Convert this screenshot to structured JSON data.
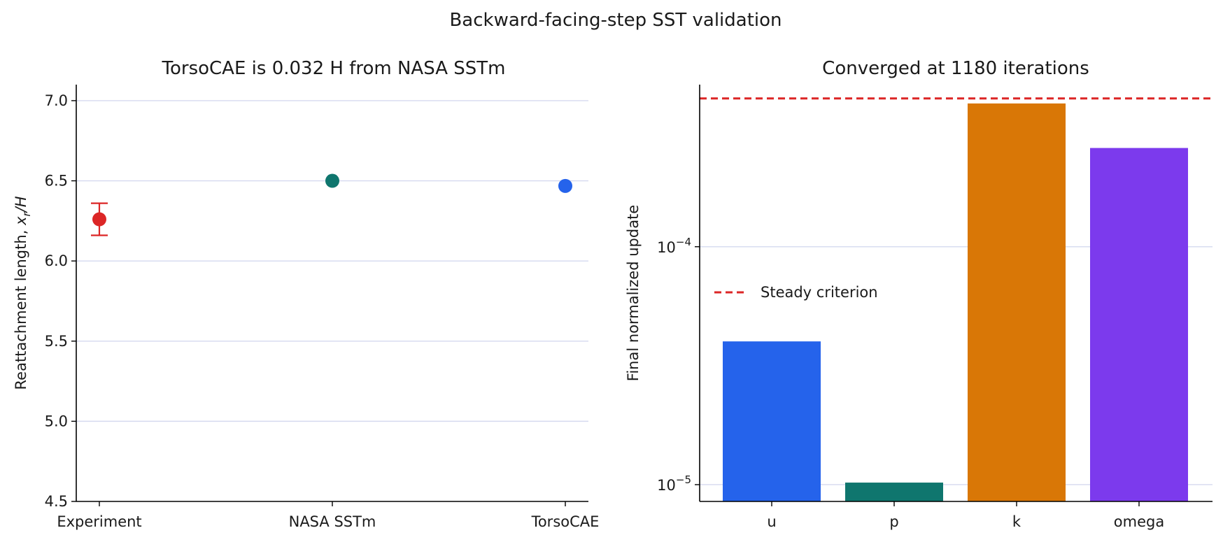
{
  "figure_title": "Backward-facing-step SST validation",
  "chart_data": [
    {
      "type": "scatter",
      "title": "TorsoCAE is 0.032 H from NASA SSTm",
      "ylabel_prefix": "Reattachment length, ",
      "ylabel_math": "x",
      "ylabel_sub": "r",
      "ylabel_suffix": "/H",
      "categories": [
        "Experiment",
        "NASA SSTm",
        "TorsoCAE"
      ],
      "values": [
        6.26,
        6.5,
        6.468
      ],
      "errors": [
        0.1,
        null,
        null
      ],
      "colors": [
        "#dc2626",
        "#0f766e",
        "#2563eb"
      ],
      "ylim": [
        4.5,
        7.1
      ],
      "yticks": [
        "4.5",
        "5.0",
        "5.5",
        "6.0",
        "6.5",
        "7.0"
      ],
      "grid": "y"
    },
    {
      "type": "bar",
      "title": "Converged at 1180 iterations",
      "ylabel": "Final normalized update",
      "yscale": "log",
      "categories": [
        "u",
        "p",
        "k",
        "omega"
      ],
      "values": [
        4e-05,
        1.02e-05,
        0.0004,
        0.00026
      ],
      "colors": [
        "#2563eb",
        "#0f766e",
        "#d97706",
        "#7c3aed"
      ],
      "ylim": [
        8.5e-06,
        0.00048
      ],
      "yticks": [
        {
          "base": "10",
          "exp": "−4",
          "value": 0.0001
        },
        {
          "base": "10",
          "exp": "−5",
          "value": 1e-05
        }
      ],
      "threshold": {
        "value": 0.00042,
        "label": "Steady criterion",
        "color": "#dc2626"
      },
      "legend_position": "center-left",
      "grid": "y"
    }
  ]
}
